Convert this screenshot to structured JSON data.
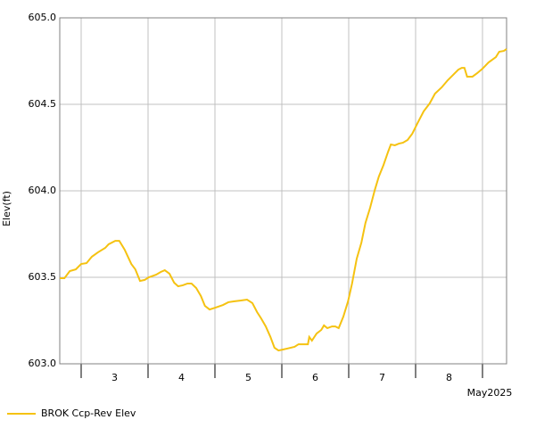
{
  "chart_data": {
    "type": "line",
    "ylabel": "Elev(ft)",
    "xlabel": "May2025",
    "xlim": [
      2.68,
      9.36
    ],
    "ylim": [
      603.0,
      605.0
    ],
    "yticks": [
      {
        "value": 603.0,
        "label": "603.0"
      },
      603.5,
      {
        "value": 604.0,
        "label": "604.0"
      },
      604.5,
      {
        "value": 605.0,
        "label": "605.0"
      }
    ],
    "xgrid": [
      3,
      4,
      5,
      6,
      7,
      8,
      9
    ],
    "xticks": [
      {
        "value": 3.5,
        "label": "3"
      },
      {
        "value": 4.5,
        "label": "4"
      },
      {
        "value": 5.5,
        "label": "5"
      },
      {
        "value": 6.5,
        "label": "6"
      },
      {
        "value": 7.5,
        "label": "7"
      },
      {
        "value": 8.5,
        "label": "8"
      }
    ],
    "grid": true,
    "legend": "bottom-left",
    "series": [
      {
        "name": "BROK Ccp-Rev Elev",
        "color": "#f5c211",
        "x": [
          2.68,
          2.75,
          2.83,
          2.92,
          3.0,
          3.08,
          3.16,
          3.25,
          3.36,
          3.41,
          3.51,
          3.57,
          3.65,
          3.75,
          3.81,
          3.88,
          3.95,
          4.01,
          4.12,
          4.19,
          4.25,
          4.32,
          4.39,
          4.45,
          4.52,
          4.59,
          4.65,
          4.72,
          4.79,
          4.85,
          4.92,
          5.01,
          5.12,
          5.2,
          5.28,
          5.39,
          5.48,
          5.56,
          5.63,
          5.69,
          5.76,
          5.83,
          5.89,
          5.95,
          6.01,
          6.08,
          6.19,
          6.25,
          6.32,
          6.39,
          6.41,
          6.45,
          6.52,
          6.59,
          6.63,
          6.68,
          6.75,
          6.8,
          6.85,
          6.92,
          6.99,
          7.05,
          7.12,
          7.19,
          7.25,
          7.32,
          7.39,
          7.45,
          7.52,
          7.59,
          7.63,
          7.69,
          7.75,
          7.81,
          7.88,
          7.95,
          8.03,
          8.12,
          8.21,
          8.29,
          8.39,
          8.48,
          8.56,
          8.64,
          8.69,
          8.73,
          8.77,
          8.85,
          8.92,
          9.0,
          9.09,
          9.2,
          9.25,
          9.32,
          9.36
        ],
        "values": [
          603.495,
          603.495,
          603.536,
          603.546,
          603.577,
          603.582,
          603.619,
          603.644,
          603.67,
          603.691,
          603.711,
          603.711,
          603.66,
          603.577,
          603.546,
          603.479,
          603.485,
          603.5,
          603.515,
          603.531,
          603.541,
          603.521,
          603.469,
          603.448,
          603.454,
          603.464,
          603.464,
          603.438,
          603.392,
          603.335,
          603.314,
          603.325,
          603.34,
          603.356,
          603.361,
          603.366,
          603.371,
          603.351,
          603.299,
          603.263,
          603.216,
          603.155,
          603.093,
          603.077,
          603.082,
          603.088,
          603.098,
          603.113,
          603.113,
          603.113,
          603.155,
          603.134,
          603.175,
          603.196,
          603.222,
          603.206,
          603.216,
          603.216,
          603.206,
          603.273,
          603.361,
          603.464,
          603.608,
          603.701,
          603.814,
          603.902,
          604.005,
          604.082,
          604.149,
          604.227,
          604.268,
          604.263,
          604.273,
          604.278,
          604.294,
          604.33,
          604.392,
          604.459,
          604.505,
          604.562,
          604.598,
          604.639,
          604.67,
          604.701,
          604.711,
          604.711,
          604.66,
          604.66,
          604.68,
          604.706,
          604.742,
          604.773,
          604.804,
          604.809,
          604.82
        ]
      }
    ]
  }
}
